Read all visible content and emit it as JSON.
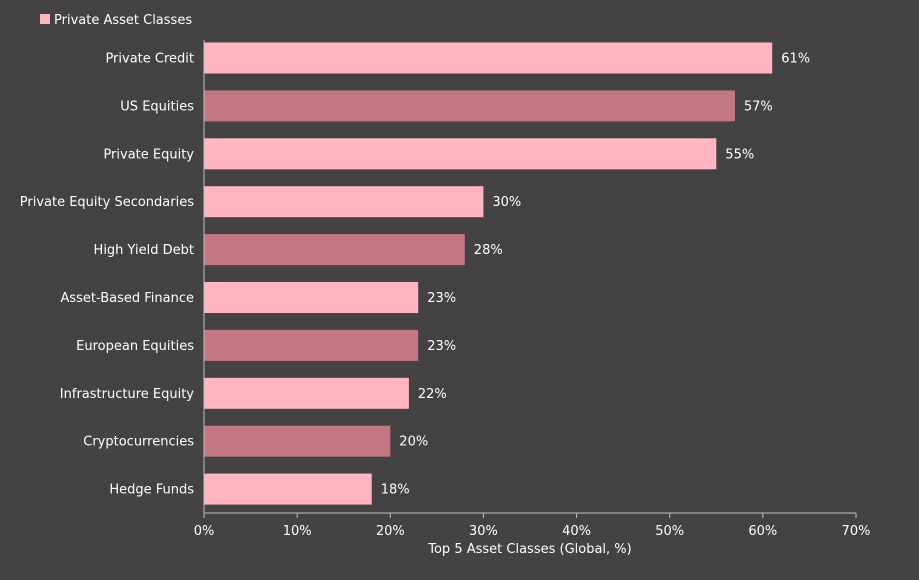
{
  "chart_data": {
    "type": "bar",
    "orientation": "horizontal",
    "xlabel": "Top 5 Asset Classes (Global, %)",
    "ylabel": "",
    "xlim": [
      0,
      70
    ],
    "x_ticks": [
      0,
      10,
      20,
      30,
      40,
      50,
      60,
      70
    ],
    "x_tick_labels": [
      "0%",
      "10%",
      "20%",
      "30%",
      "40%",
      "50%",
      "60%",
      "70%"
    ],
    "value_suffix": "%",
    "grid": false,
    "legend": {
      "placement": "top-left",
      "entries": [
        {
          "label": "Private Asset Classes",
          "color": "#FFB6C1"
        }
      ]
    },
    "colors": {
      "private": "#FFB6C1",
      "other": "#C27781",
      "background": "#454244",
      "text": "#FFFFFF",
      "axis": "#BFBFBF"
    },
    "categories": [
      "Private Credit",
      "US Equities",
      "Private Equity",
      "Private Equity Secondaries",
      "High Yield Debt",
      "Asset-Based Finance",
      "European Equities",
      "Infrastructure Equity",
      "Cryptocurrencies",
      "Hedge Funds"
    ],
    "values": [
      61,
      57,
      55,
      30,
      28,
      23,
      23,
      22,
      20,
      18
    ],
    "is_private": [
      true,
      false,
      true,
      true,
      false,
      true,
      false,
      true,
      false,
      true
    ]
  }
}
